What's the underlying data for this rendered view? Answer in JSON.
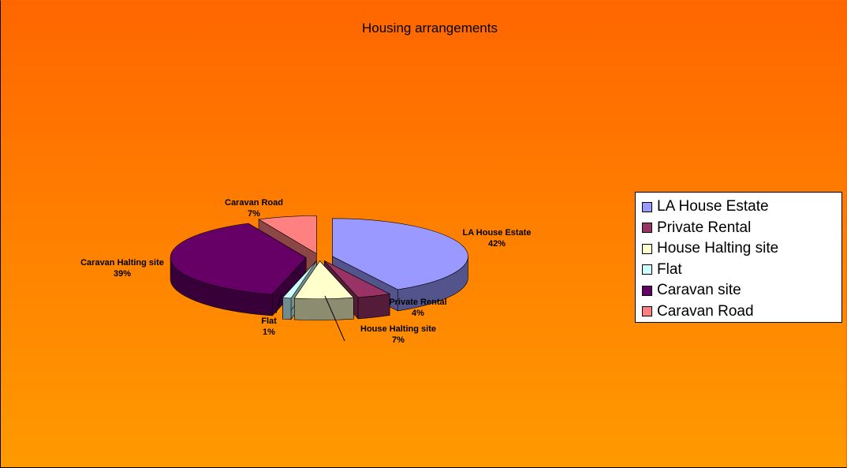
{
  "chart_data": {
    "type": "pie3d",
    "title": "Housing arrangements",
    "categories": [
      "LA House Estate",
      "Private Rental",
      "House Halting site",
      "Flat",
      "Caravan site",
      "Caravan Road"
    ],
    "data_label_names": [
      "LA House Estate",
      "Private Rental",
      "House Halting site",
      "Flat",
      "Caravan Halting site",
      "Caravan Road"
    ],
    "values": [
      42,
      4,
      7,
      1,
      39,
      7
    ],
    "value_labels": [
      "42%",
      "4%",
      "7%",
      "1%",
      "39%",
      "7%"
    ],
    "colors": [
      "#9999ff",
      "#993366",
      "#ffffcc",
      "#ccffff",
      "#660066",
      "#ff8080"
    ],
    "legend": "right"
  }
}
